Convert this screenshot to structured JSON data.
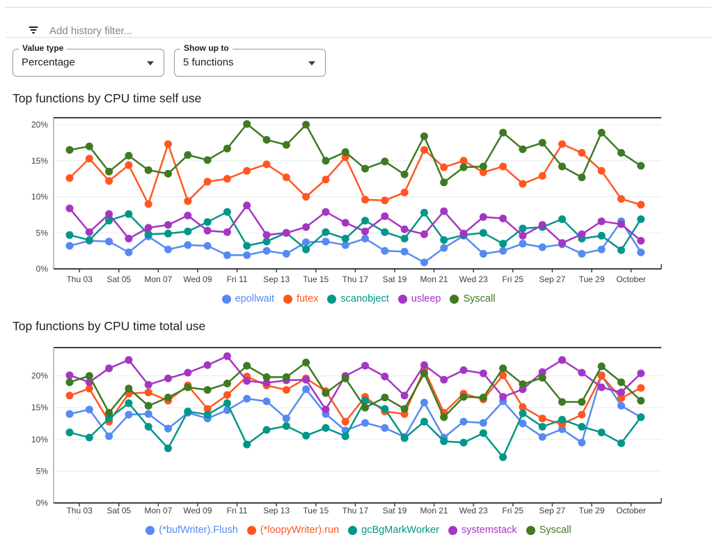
{
  "filter_bar": {
    "icon": "filter-list-icon",
    "placeholder": "Add history filter..."
  },
  "controls": {
    "value_type": {
      "label": "Value type",
      "value": "Percentage",
      "icon": "dropdown-arrow-icon"
    },
    "show_up_to": {
      "label": "Show up to",
      "value": "5 functions",
      "icon": "dropdown-arrow-icon"
    }
  },
  "chart_data": [
    {
      "type": "line",
      "title": "Top functions by CPU time self use",
      "x_tick_labels": [
        "Thu 03",
        "Sat 05",
        "Mon 07",
        "Wed 09",
        "Fri 11",
        "Sep 13",
        "Tue 15",
        "Thu 17",
        "Sat 19",
        "Mon 21",
        "Wed 23",
        "Fri 25",
        "Sep 27",
        "Tue 29",
        "October"
      ],
      "yticks": [
        0,
        5,
        10,
        15,
        20
      ],
      "y_unit": "%",
      "ylim": [
        0,
        21
      ],
      "grid": true,
      "markers": true,
      "legend_position": "bottom",
      "series": [
        {
          "name": "epollwait",
          "color": "#568af2",
          "values": [
            3.2,
            3.9,
            3.8,
            2.3,
            4.5,
            2.7,
            3.3,
            3.2,
            1.9,
            1.9,
            2.5,
            2.1,
            3.7,
            3.8,
            3.3,
            4.2,
            2.5,
            2.4,
            0.9,
            2.9,
            4.6,
            2.1,
            2.5,
            3.5,
            3.0,
            3.4,
            2.1,
            2.7,
            6.6,
            2.3
          ]
        },
        {
          "name": "futex",
          "color": "#ff5722",
          "values": [
            12.6,
            15.3,
            12.2,
            14.4,
            9.0,
            17.3,
            9.4,
            12.1,
            12.5,
            13.6,
            14.5,
            12.7,
            10.0,
            12.4,
            15.5,
            9.6,
            9.5,
            10.6,
            16.5,
            14.1,
            15.0,
            13.4,
            14.2,
            11.8,
            12.9,
            17.3,
            16.1,
            13.6,
            9.7,
            8.9
          ]
        },
        {
          "name": "scanobject",
          "color": "#009688",
          "values": [
            4.7,
            4.0,
            6.7,
            7.6,
            4.8,
            4.9,
            5.2,
            6.5,
            7.9,
            3.2,
            3.8,
            5.0,
            2.7,
            5.1,
            4.2,
            6.7,
            5.1,
            4.2,
            7.8,
            4.0,
            4.7,
            5.0,
            3.5,
            5.6,
            5.8,
            6.9,
            4.2,
            4.6,
            2.6,
            6.9
          ]
        },
        {
          "name": "usleep",
          "color": "#a436c4",
          "values": [
            8.4,
            5.1,
            7.6,
            4.2,
            5.7,
            6.1,
            7.4,
            5.3,
            5.1,
            8.8,
            4.7,
            5.0,
            5.8,
            7.9,
            6.4,
            5.2,
            7.3,
            5.5,
            4.8,
            8.0,
            4.9,
            7.2,
            7.0,
            4.6,
            6.1,
            3.6,
            4.8,
            6.6,
            6.2,
            3.9
          ]
        },
        {
          "name": "Syscall",
          "color": "#3e7a21",
          "values": [
            16.5,
            17.0,
            13.5,
            15.7,
            13.7,
            13.2,
            15.8,
            15.1,
            16.7,
            20.1,
            17.9,
            17.2,
            20.0,
            15.0,
            16.2,
            13.9,
            14.9,
            13.1,
            18.4,
            12.0,
            14.1,
            14.2,
            18.9,
            16.6,
            17.5,
            14.2,
            12.7,
            18.9,
            16.1,
            14.3
          ]
        }
      ]
    },
    {
      "type": "line",
      "title": "Top functions by CPU time total use",
      "x_tick_labels": [
        "Thu 03",
        "Sat 05",
        "Mon 07",
        "Wed 09",
        "Fri 11",
        "Sep 13",
        "Tue 15",
        "Thu 17",
        "Sat 19",
        "Mon 21",
        "Wed 23",
        "Fri 25",
        "Sep 27",
        "Tue 29",
        "October"
      ],
      "yticks": [
        0,
        5,
        10,
        15,
        20
      ],
      "y_unit": "%",
      "ylim": [
        0,
        24.5
      ],
      "grid": true,
      "markers": true,
      "legend_position": "bottom",
      "series": [
        {
          "name": "(*bufWriter).Flush",
          "color": "#568af2",
          "values": [
            14.0,
            14.7,
            10.5,
            13.9,
            14.0,
            11.7,
            14.2,
            13.3,
            14.6,
            16.4,
            16.0,
            13.3,
            17.9,
            14.0,
            11.4,
            12.6,
            11.8,
            10.4,
            15.8,
            10.3,
            12.8,
            12.6,
            16.0,
            12.5,
            10.4,
            11.6,
            9.5,
            20.1,
            15.3,
            13.5
          ]
        },
        {
          "name": "(*loopyWriter).run",
          "color": "#ff5722",
          "values": [
            16.9,
            18.0,
            12.8,
            17.2,
            17.4,
            16.1,
            18.5,
            14.8,
            17.0,
            19.9,
            18.5,
            17.8,
            19.6,
            17.6,
            12.8,
            16.7,
            14.4,
            14.0,
            21.0,
            14.2,
            17.2,
            16.3,
            20.1,
            15.1,
            13.3,
            12.4,
            13.9,
            20.0,
            16.5,
            18.1
          ]
        },
        {
          "name": "gcBgMarkWorker",
          "color": "#009688",
          "values": [
            11.1,
            10.3,
            13.3,
            15.7,
            12.0,
            8.6,
            14.4,
            13.9,
            15.7,
            9.2,
            11.5,
            12.1,
            10.6,
            11.8,
            10.5,
            16.1,
            14.8,
            10.2,
            12.8,
            9.7,
            9.5,
            11.0,
            7.2,
            14.1,
            12.0,
            13.1,
            12.0,
            11.1,
            9.4,
            13.5
          ]
        },
        {
          "name": "systemstack",
          "color": "#a436c4",
          "values": [
            20.1,
            19.0,
            21.2,
            22.5,
            18.6,
            19.6,
            20.5,
            21.7,
            23.1,
            19.2,
            18.9,
            19.3,
            19.4,
            14.7,
            20.0,
            21.6,
            19.9,
            16.9,
            21.7,
            19.4,
            20.9,
            20.4,
            16.7,
            17.9,
            20.6,
            22.5,
            20.5,
            18.2,
            17.4,
            20.4
          ]
        },
        {
          "name": "Syscall",
          "color": "#3e7a21",
          "values": [
            19.0,
            20.0,
            14.2,
            18.0,
            15.3,
            16.6,
            18.2,
            17.8,
            18.8,
            21.6,
            19.8,
            19.8,
            22.1,
            17.3,
            19.6,
            15.0,
            16.6,
            14.8,
            20.4,
            13.5,
            16.7,
            16.6,
            21.2,
            18.7,
            19.7,
            15.9,
            15.9,
            21.5,
            19.0,
            16.1
          ]
        }
      ]
    }
  ]
}
